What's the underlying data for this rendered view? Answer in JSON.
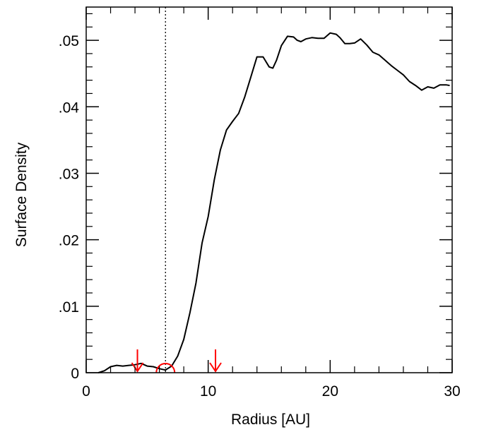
{
  "chart_data": {
    "type": "line",
    "title": "",
    "xlabel": "Radius  [AU]",
    "ylabel": "Surface Density",
    "xlim": [
      0,
      30
    ],
    "ylim": [
      0,
      0.055
    ],
    "grid": false,
    "x_ticks": [
      {
        "value": 0,
        "label": "0"
      },
      {
        "value": 10,
        "label": "10"
      },
      {
        "value": 20,
        "label": "20"
      },
      {
        "value": 30,
        "label": "30"
      }
    ],
    "y_ticks": [
      {
        "value": 0,
        "label": "0"
      },
      {
        "value": 0.01,
        "label": ".01"
      },
      {
        "value": 0.02,
        "label": ".02"
      },
      {
        "value": 0.03,
        "label": ".03"
      },
      {
        "value": 0.04,
        "label": ".04"
      },
      {
        "value": 0.05,
        "label": ".05"
      }
    ],
    "x_minor_step": 2,
    "y_minor_step": 0.002,
    "series": [
      {
        "color": "#000000",
        "x": [
          1.0,
          1.5,
          2.0,
          2.5,
          3.0,
          3.5,
          4.0,
          4.5,
          5.0,
          5.5,
          6.0,
          6.5,
          7.0,
          7.5,
          8.0,
          8.5,
          9.0,
          9.5,
          10.0,
          10.5,
          11.0,
          11.5,
          12.0,
          12.5,
          13.0,
          13.5,
          14.0,
          14.5,
          15.0,
          15.3,
          15.6,
          16.0,
          16.5,
          17.0,
          17.3,
          17.6,
          18.0,
          18.5,
          19.0,
          19.5,
          20.0,
          20.5,
          20.8,
          21.2,
          21.6,
          22.0,
          22.5,
          23.0,
          23.5,
          24.0,
          24.5,
          25.0,
          25.5,
          26.0,
          26.5,
          27.0,
          27.5,
          28.0,
          28.5,
          29.0,
          29.5,
          29.8
        ],
        "y": [
          0.0,
          0.0003,
          0.0009,
          0.0011,
          0.001,
          0.0011,
          0.0012,
          0.0014,
          0.001,
          0.0009,
          0.0006,
          0.0004,
          0.001,
          0.0025,
          0.005,
          0.009,
          0.0135,
          0.0195,
          0.0235,
          0.029,
          0.0335,
          0.0365,
          0.0378,
          0.039,
          0.0415,
          0.0445,
          0.0475,
          0.0475,
          0.046,
          0.0458,
          0.047,
          0.0492,
          0.0506,
          0.0505,
          0.05,
          0.0498,
          0.0502,
          0.0504,
          0.0503,
          0.0503,
          0.0511,
          0.0509,
          0.0504,
          0.0495,
          0.0495,
          0.0496,
          0.0502,
          0.0493,
          0.0482,
          0.0478,
          0.047,
          0.0462,
          0.0455,
          0.0448,
          0.0438,
          0.0432,
          0.0425,
          0.043,
          0.0428,
          0.0433,
          0.0433,
          0.0432
        ]
      }
    ],
    "vertical_lines": [
      {
        "x": 6.5,
        "style": "dotted",
        "color": "#000000"
      }
    ],
    "arrows": [
      {
        "x": 4.2,
        "color": "#ff0000",
        "direction": "down"
      },
      {
        "x": 10.6,
        "color": "#ff0000",
        "direction": "down"
      }
    ],
    "arcs": [
      {
        "x": 6.5,
        "color": "#ff0000",
        "shape": "half-circle"
      }
    ]
  }
}
